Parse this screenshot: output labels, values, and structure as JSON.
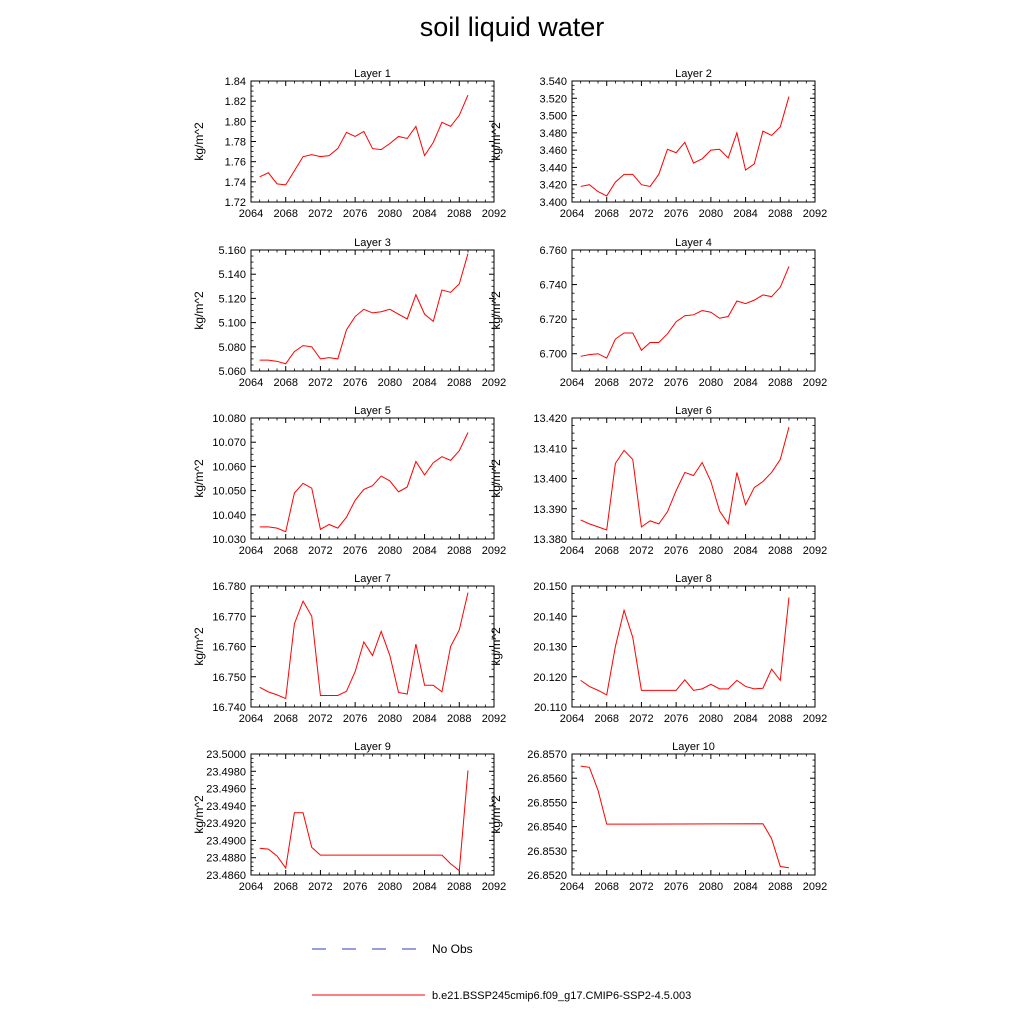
{
  "title": "soil liquid water",
  "legend": {
    "entries": [
      {
        "label": "No Obs",
        "color": "#2f3fbf",
        "style": "dashed"
      },
      {
        "label": "b.e21.BSSP245cmip6.f09_g17.CMIP6-SSP2-4.5.003",
        "color": "#ff0000",
        "style": "solid"
      }
    ]
  },
  "chart_data": [
    {
      "type": "line",
      "title": "Layer 1",
      "ylabel": "kg/m^2",
      "xlim": [
        2064,
        2092
      ],
      "xticks": [
        "2064",
        "2068",
        "2072",
        "2076",
        "2080",
        "2084",
        "2088",
        "2092"
      ],
      "ylim": [
        1.72,
        1.84
      ],
      "yticks": [
        "1.72",
        "1.74",
        "1.76",
        "1.78",
        "1.80",
        "1.82",
        "1.84"
      ],
      "series": [
        {
          "x": [
            2065,
            2066,
            2067,
            2068,
            2069,
            2070,
            2071,
            2072,
            2073,
            2074,
            2075,
            2076,
            2077,
            2078,
            2079,
            2080,
            2081,
            2082,
            2083,
            2084,
            2085,
            2086,
            2087,
            2088,
            2089
          ],
          "y": [
            1.745,
            1.749,
            1.738,
            1.737,
            1.751,
            1.765,
            1.767,
            1.765,
            1.766,
            1.773,
            1.789,
            1.785,
            1.79,
            1.773,
            1.772,
            1.778,
            1.785,
            1.783,
            1.795,
            1.766,
            1.779,
            1.799,
            1.795,
            1.806,
            1.826
          ]
        }
      ]
    },
    {
      "type": "line",
      "title": "Layer 2",
      "ylabel": "kg/m^2",
      "xlim": [
        2064,
        2092
      ],
      "xticks": [
        "2064",
        "2068",
        "2072",
        "2076",
        "2080",
        "2084",
        "2088",
        "2092"
      ],
      "ylim": [
        3.4,
        3.54
      ],
      "yticks": [
        "3.400",
        "3.420",
        "3.440",
        "3.460",
        "3.480",
        "3.500",
        "3.520",
        "3.540"
      ],
      "series": [
        {
          "x": [
            2065,
            2066,
            2067,
            2068,
            2069,
            2070,
            2071,
            2072,
            2073,
            2074,
            2075,
            2076,
            2077,
            2078,
            2079,
            2080,
            2081,
            2082,
            2083,
            2084,
            2085,
            2086,
            2087,
            2088,
            2089
          ],
          "y": [
            3.418,
            3.42,
            3.412,
            3.407,
            3.423,
            3.432,
            3.432,
            3.42,
            3.418,
            3.432,
            3.461,
            3.457,
            3.469,
            3.445,
            3.45,
            3.46,
            3.461,
            3.451,
            3.48,
            3.437,
            3.444,
            3.482,
            3.477,
            3.487,
            3.522
          ]
        }
      ]
    },
    {
      "type": "line",
      "title": "Layer 3",
      "ylabel": "kg/m^2",
      "xlim": [
        2064,
        2092
      ],
      "xticks": [
        "2064",
        "2068",
        "2072",
        "2076",
        "2080",
        "2084",
        "2088",
        "2092"
      ],
      "ylim": [
        5.06,
        5.16
      ],
      "yticks": [
        "5.060",
        "5.080",
        "5.100",
        "5.120",
        "5.140",
        "5.160"
      ],
      "series": [
        {
          "x": [
            2065,
            2066,
            2067,
            2068,
            2069,
            2070,
            2071,
            2072,
            2073,
            2074,
            2075,
            2076,
            2077,
            2078,
            2079,
            2080,
            2081,
            2082,
            2083,
            2084,
            2085,
            2086,
            2087,
            2088,
            2089
          ],
          "y": [
            5.069,
            5.069,
            5.068,
            5.066,
            5.076,
            5.081,
            5.08,
            5.07,
            5.071,
            5.07,
            5.094,
            5.105,
            5.111,
            5.108,
            5.109,
            5.111,
            5.107,
            5.103,
            5.123,
            5.107,
            5.101,
            5.127,
            5.125,
            5.132,
            5.157
          ]
        }
      ]
    },
    {
      "type": "line",
      "title": "Layer 4",
      "ylabel": "kg/m^2",
      "xlim": [
        2064,
        2092
      ],
      "xticks": [
        "2064",
        "2068",
        "2072",
        "2076",
        "2080",
        "2084",
        "2088",
        "2092"
      ],
      "ylim": [
        6.69,
        6.76
      ],
      "yticks": [
        "6.700",
        "6.720",
        "6.740",
        "6.760"
      ],
      "series": [
        {
          "x": [
            2065,
            2066,
            2067,
            2068,
            2069,
            2070,
            2071,
            2072,
            2073,
            2074,
            2075,
            2076,
            2077,
            2078,
            2079,
            2080,
            2081,
            2082,
            2083,
            2084,
            2085,
            2086,
            2087,
            2088,
            2089
          ],
          "y": [
            6.6985,
            6.6995,
            6.7,
            6.6975,
            6.7085,
            6.712,
            6.712,
            6.702,
            6.7065,
            6.7065,
            6.7115,
            6.7185,
            6.722,
            6.7225,
            6.725,
            6.724,
            6.7205,
            6.7215,
            6.7305,
            6.729,
            6.731,
            6.734,
            6.733,
            6.7385,
            6.7505
          ]
        }
      ]
    },
    {
      "type": "line",
      "title": "Layer 5",
      "ylabel": "kg/m^2",
      "xlim": [
        2064,
        2092
      ],
      "xticks": [
        "2064",
        "2068",
        "2072",
        "2076",
        "2080",
        "2084",
        "2088",
        "2092"
      ],
      "ylim": [
        10.03,
        10.08
      ],
      "yticks": [
        "10.030",
        "10.040",
        "10.050",
        "10.060",
        "10.070",
        "10.080"
      ],
      "series": [
        {
          "x": [
            2065,
            2066,
            2067,
            2068,
            2069,
            2070,
            2071,
            2072,
            2073,
            2074,
            2075,
            2076,
            2077,
            2078,
            2079,
            2080,
            2081,
            2082,
            2083,
            2084,
            2085,
            2086,
            2087,
            2088,
            2089
          ],
          "y": [
            10.035,
            10.035,
            10.0345,
            10.033,
            10.049,
            10.053,
            10.051,
            10.034,
            10.036,
            10.0345,
            10.039,
            10.046,
            10.0505,
            10.052,
            10.056,
            10.054,
            10.0495,
            10.0515,
            10.062,
            10.0565,
            10.0615,
            10.064,
            10.0625,
            10.0665,
            10.074
          ]
        }
      ]
    },
    {
      "type": "line",
      "title": "Layer 6",
      "ylabel": "kg/m^2",
      "xlim": [
        2064,
        2092
      ],
      "xticks": [
        "2064",
        "2068",
        "2072",
        "2076",
        "2080",
        "2084",
        "2088",
        "2092"
      ],
      "ylim": [
        13.38,
        13.42
      ],
      "yticks": [
        "13.380",
        "13.390",
        "13.400",
        "13.410",
        "13.420"
      ],
      "series": [
        {
          "x": [
            2065,
            2066,
            2067,
            2068,
            2069,
            2070,
            2071,
            2072,
            2073,
            2074,
            2075,
            2076,
            2077,
            2078,
            2079,
            2080,
            2081,
            2082,
            2083,
            2084,
            2085,
            2086,
            2087,
            2088,
            2089
          ],
          "y": [
            13.3863,
            13.385,
            13.384,
            13.383,
            13.405,
            13.4093,
            13.4063,
            13.384,
            13.386,
            13.385,
            13.389,
            13.396,
            13.402,
            13.401,
            13.4053,
            13.399,
            13.3893,
            13.385,
            13.402,
            13.3913,
            13.397,
            13.399,
            13.402,
            13.4063,
            13.417
          ]
        }
      ]
    },
    {
      "type": "line",
      "title": "Layer 7",
      "ylabel": "kg/m^2",
      "xlim": [
        2064,
        2092
      ],
      "xticks": [
        "2064",
        "2068",
        "2072",
        "2076",
        "2080",
        "2084",
        "2088",
        "2092"
      ],
      "ylim": [
        16.74,
        16.78
      ],
      "yticks": [
        "16.740",
        "16.750",
        "16.760",
        "16.770",
        "16.780"
      ],
      "series": [
        {
          "x": [
            2065,
            2066,
            2067,
            2068,
            2069,
            2070,
            2071,
            2072,
            2073,
            2074,
            2075,
            2076,
            2077,
            2078,
            2079,
            2080,
            2081,
            2082,
            2083,
            2084,
            2085,
            2086,
            2087,
            2088,
            2089
          ],
          "y": [
            16.7465,
            16.745,
            16.744,
            16.7428,
            16.7675,
            16.775,
            16.77,
            16.7438,
            16.7438,
            16.7438,
            16.7452,
            16.7517,
            16.7615,
            16.757,
            16.765,
            16.757,
            16.7448,
            16.7443,
            16.7608,
            16.7472,
            16.7472,
            16.745,
            16.76,
            16.7655,
            16.7778
          ]
        }
      ]
    },
    {
      "type": "line",
      "title": "Layer 8",
      "ylabel": "kg/m^2",
      "xlim": [
        2064,
        2092
      ],
      "xticks": [
        "2064",
        "2068",
        "2072",
        "2076",
        "2080",
        "2084",
        "2088",
        "2092"
      ],
      "ylim": [
        20.11,
        20.15
      ],
      "yticks": [
        "20.110",
        "20.120",
        "20.130",
        "20.140",
        "20.150"
      ],
      "series": [
        {
          "x": [
            2065,
            2066,
            2067,
            2068,
            2069,
            2070,
            2071,
            2072,
            2073,
            2074,
            2075,
            2076,
            2077,
            2078,
            2079,
            2080,
            2081,
            2082,
            2083,
            2084,
            2085,
            2086,
            2087,
            2088,
            2089
          ],
          "y": [
            20.1188,
            20.1168,
            20.1155,
            20.114,
            20.13,
            20.142,
            20.133,
            20.1155,
            20.1155,
            20.1155,
            20.1155,
            20.1155,
            20.119,
            20.1155,
            20.116,
            20.1175,
            20.116,
            20.116,
            20.1188,
            20.1168,
            20.116,
            20.1162,
            20.1225,
            20.1188,
            20.1462
          ]
        }
      ]
    },
    {
      "type": "line",
      "title": "Layer 9",
      "ylabel": "kg/m^2",
      "xlim": [
        2064,
        2092
      ],
      "xticks": [
        "2064",
        "2068",
        "2072",
        "2076",
        "2080",
        "2084",
        "2088",
        "2092"
      ],
      "ylim": [
        23.486,
        23.5
      ],
      "yticks": [
        "23.4860",
        "23.4880",
        "23.4900",
        "23.4920",
        "23.4940",
        "23.4960",
        "23.4980",
        "23.5000"
      ],
      "series": [
        {
          "x": [
            2065,
            2066,
            2067,
            2068,
            2069,
            2070,
            2071,
            2072,
            2086,
            2087,
            2088,
            2089
          ],
          "y": [
            23.4891,
            23.489,
            23.4882,
            23.4868,
            23.4932,
            23.4932,
            23.4892,
            23.4883,
            23.4883,
            23.4873,
            23.4865,
            23.4981
          ]
        }
      ]
    },
    {
      "type": "line",
      "title": "Layer 10",
      "ylabel": "kg/m^2",
      "xlim": [
        2064,
        2092
      ],
      "xticks": [
        "2064",
        "2068",
        "2072",
        "2076",
        "2080",
        "2084",
        "2088",
        "2092"
      ],
      "ylim": [
        26.852,
        26.857
      ],
      "yticks": [
        "26.8520",
        "26.8530",
        "26.8540",
        "26.8550",
        "26.8560",
        "26.8570"
      ],
      "series": [
        {
          "x": [
            2065,
            2066,
            2067,
            2068,
            2086,
            2087,
            2088,
            2089
          ],
          "y": [
            26.8565,
            26.85645,
            26.8555,
            26.8541,
            26.85412,
            26.8535,
            26.85235,
            26.8523
          ]
        }
      ]
    }
  ]
}
